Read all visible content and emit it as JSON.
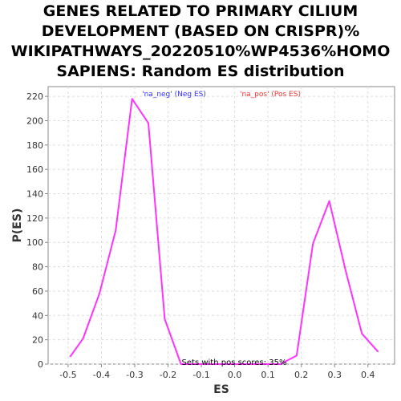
{
  "chart_data": {
    "type": "line",
    "title_lines": [
      "GENES RELATED TO PRIMARY CILIUM",
      "DEVELOPMENT (BASED ON CRISPR)%",
      "WIKIPATHWAYS_20220510%WP4536%HOMO",
      "SAPIENS: Random ES distribution"
    ],
    "xlabel": "ES",
    "ylabel": "P(ES)",
    "xlim": [
      -0.56,
      0.48
    ],
    "ylim": [
      0,
      228
    ],
    "xticks": [
      -0.5,
      -0.4,
      -0.3,
      -0.2,
      -0.1,
      0.0,
      0.1,
      0.2,
      0.3,
      0.4
    ],
    "yticks": [
      0,
      20,
      40,
      60,
      80,
      100,
      120,
      140,
      160,
      180,
      200,
      220
    ],
    "grid": true,
    "legend_texts": [
      {
        "label": "'na_neg' (Neg ES)",
        "color": "#3333ff"
      },
      {
        "label": "'na_pos' (Pos ES)",
        "color": "#ff3333"
      }
    ],
    "annotation": "Sets with pos scores: 35%",
    "series": [
      {
        "color": "#ff33ff",
        "points": [
          [
            -0.494,
            6
          ],
          [
            -0.455,
            21
          ],
          [
            -0.406,
            58
          ],
          [
            -0.357,
            110
          ],
          [
            -0.308,
            218
          ],
          [
            -0.259,
            198
          ],
          [
            -0.21,
            37
          ],
          [
            -0.161,
            0
          ],
          [
            0.137,
            0
          ],
          [
            0.186,
            7
          ],
          [
            0.235,
            99
          ],
          [
            0.284,
            134
          ],
          [
            0.333,
            77
          ],
          [
            0.382,
            25
          ],
          [
            0.431,
            10
          ]
        ]
      }
    ]
  }
}
